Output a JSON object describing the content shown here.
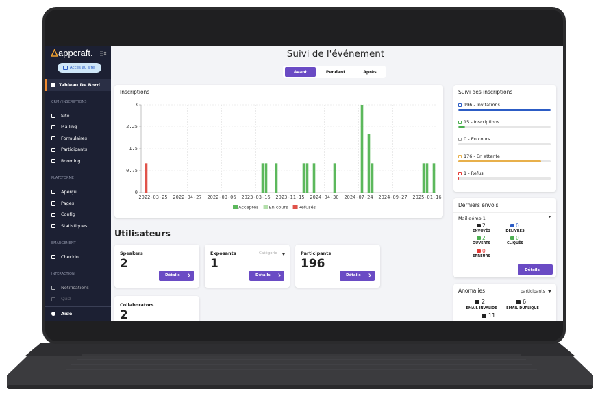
{
  "sidebar": {
    "logo": "appcraft.",
    "site_button": "Accès au site",
    "active_item": "Tableau De Bord",
    "sections": [
      {
        "title": "CRM / INSCRIPTIONS",
        "items": [
          "Site",
          "Mailing",
          "Formulaires",
          "Participants",
          "Rooming"
        ]
      },
      {
        "title": "PLATEFORME",
        "items": [
          "Aperçu",
          "Pages",
          "Config",
          "Statistiques"
        ]
      },
      {
        "title": "EMARGEMENT",
        "items": [
          "Checkin"
        ]
      },
      {
        "title": "INTERACTION",
        "items": [
          "Notifications",
          "Quiz"
        ]
      }
    ],
    "help": "Aide"
  },
  "header": {
    "title": "Suivi de l'événement",
    "tabs": [
      "Avant",
      "Pendant",
      "Après"
    ]
  },
  "inscriptions_chart": {
    "type": "bar",
    "title": "Inscriptions",
    "categories": [
      null,
      null,
      null,
      "2022-03-25",
      null,
      null,
      null,
      null,
      null,
      null,
      null,
      null,
      null,
      "2022-04-27",
      null,
      null,
      null,
      null,
      null,
      null,
      null,
      null,
      null,
      "2022-09-06",
      null,
      null,
      null,
      null,
      null,
      null,
      null,
      null,
      null,
      "2023-03-16",
      null,
      null,
      null,
      null,
      null,
      null,
      null,
      null,
      null,
      "2023-11-15",
      null,
      null,
      null,
      null,
      null,
      null,
      null,
      null,
      null,
      "2024-04-30",
      null,
      null,
      null,
      null,
      null,
      null,
      null,
      null,
      null,
      "2024-07-24",
      null,
      null,
      null,
      null,
      null,
      null,
      null,
      null,
      null,
      "2024-09-27",
      null,
      null,
      null,
      null,
      null,
      null,
      null,
      null,
      null,
      "2025-01-16",
      null,
      null
    ],
    "series": [
      {
        "name": "Acceptés",
        "color": "#5cb85c",
        "values": [
          0,
          0,
          0,
          0,
          0,
          0,
          0,
          0,
          0,
          0,
          0,
          0,
          0,
          0,
          0,
          0,
          0,
          0,
          0,
          0,
          0,
          0,
          0,
          0,
          0,
          0,
          0,
          0,
          0,
          0,
          0,
          0,
          0,
          0,
          0,
          1,
          1,
          0,
          0,
          1,
          0,
          0,
          0,
          0,
          0,
          0,
          0,
          1,
          1,
          0,
          1,
          0,
          0,
          0,
          0,
          0,
          1,
          0,
          0,
          0,
          0,
          0,
          0,
          0,
          3,
          0,
          2,
          1,
          0,
          0,
          0,
          0,
          0,
          0,
          0,
          0,
          0,
          0,
          0,
          0,
          0,
          0,
          1,
          1,
          0,
          1
        ]
      },
      {
        "name": "En cours",
        "color": "#b3dfab",
        "values": [
          0,
          0,
          0,
          0,
          0,
          0,
          0,
          0,
          0,
          0,
          0,
          0,
          0,
          0,
          0,
          0,
          0,
          0,
          0,
          0,
          0,
          0,
          0,
          0,
          0,
          0,
          0,
          0,
          0,
          0,
          0,
          0,
          0,
          0,
          0,
          0,
          0,
          0,
          0,
          0,
          0,
          0,
          0,
          0,
          0,
          0,
          0,
          0,
          0,
          0,
          0,
          0,
          0,
          0,
          0,
          0,
          0,
          0,
          0,
          0,
          0,
          0,
          0,
          0,
          0,
          0,
          0,
          0,
          0,
          0,
          0,
          0,
          0,
          0,
          0,
          0,
          0,
          0,
          0,
          0,
          0,
          0,
          0,
          0,
          0,
          0
        ]
      },
      {
        "name": "Refusés",
        "color": "#e0534a",
        "values": [
          0,
          1,
          0,
          0,
          0,
          0,
          0,
          0,
          0,
          0,
          0,
          0,
          0,
          0,
          0,
          0,
          0,
          0,
          0,
          0,
          0,
          0,
          0,
          0,
          0,
          0,
          0,
          0,
          0,
          0,
          0,
          0,
          0,
          0,
          0,
          0,
          0,
          0,
          0,
          0,
          0,
          0,
          0,
          0,
          0,
          0,
          0,
          0,
          0,
          0,
          0,
          0,
          0,
          0,
          0,
          0,
          0,
          0,
          0,
          0,
          0,
          0,
          0,
          0,
          0,
          0,
          0,
          0,
          0,
          0,
          0,
          0,
          0,
          0,
          0,
          0,
          0,
          0,
          0,
          0,
          0,
          0,
          0,
          0,
          0,
          0
        ]
      }
    ],
    "ylim": [
      0,
      3
    ],
    "yticks": [
      0,
      0.75,
      1.5,
      2.25,
      3
    ],
    "grid": true
  },
  "registration_tracking": {
    "title": "Suivi des inscriptions",
    "items": [
      {
        "text": "196 - Invitations",
        "value": 196,
        "color": "#2c5cc5"
      },
      {
        "text": "15 - Inscriptions",
        "value": 15,
        "color": "#4caf50"
      },
      {
        "text": "0 - En cours",
        "value": 0,
        "color": "#9e9e9e"
      },
      {
        "text": "176 - En attente",
        "value": 176,
        "color": "#e8b04b"
      },
      {
        "text": "1 - Refus",
        "value": 1,
        "color": "#e53935"
      }
    ]
  },
  "recent_sends": {
    "title": "Derniers envois",
    "mail": "Mail démo 1",
    "stats": [
      {
        "value": 2,
        "label": "ENVOYÉS",
        "color": "#222222"
      },
      {
        "value": 0,
        "label": "DÉLIVRÉS",
        "color": "#2c5cc5"
      },
      {
        "value": 2,
        "label": "OUVERTS",
        "color": "#4caf50"
      },
      {
        "value": 0,
        "label": "CLIQUÉS",
        "color": "#4caf50"
      },
      {
        "value": 0,
        "label": "ERREURS",
        "color": "#e53935"
      }
    ],
    "button": "Détails"
  },
  "users": {
    "title": "Utilisateurs",
    "cards": [
      {
        "title": "Speakers",
        "count": 2,
        "button": "Détails"
      },
      {
        "title": "Exposants",
        "count": 1,
        "filter": "Catégorie",
        "button": "Détails"
      },
      {
        "title": "Participants",
        "count": 196,
        "button": "Détails"
      },
      {
        "title": "Collaborators",
        "count": 2
      }
    ]
  },
  "anomalies": {
    "title": "Anomalies",
    "filter": "participants",
    "stats": [
      {
        "value": 2,
        "label": "EMAIL INVALIDE"
      },
      {
        "value": 6,
        "label": "EMAIL DUPLIQUÉ"
      },
      {
        "value": 11
      }
    ]
  }
}
